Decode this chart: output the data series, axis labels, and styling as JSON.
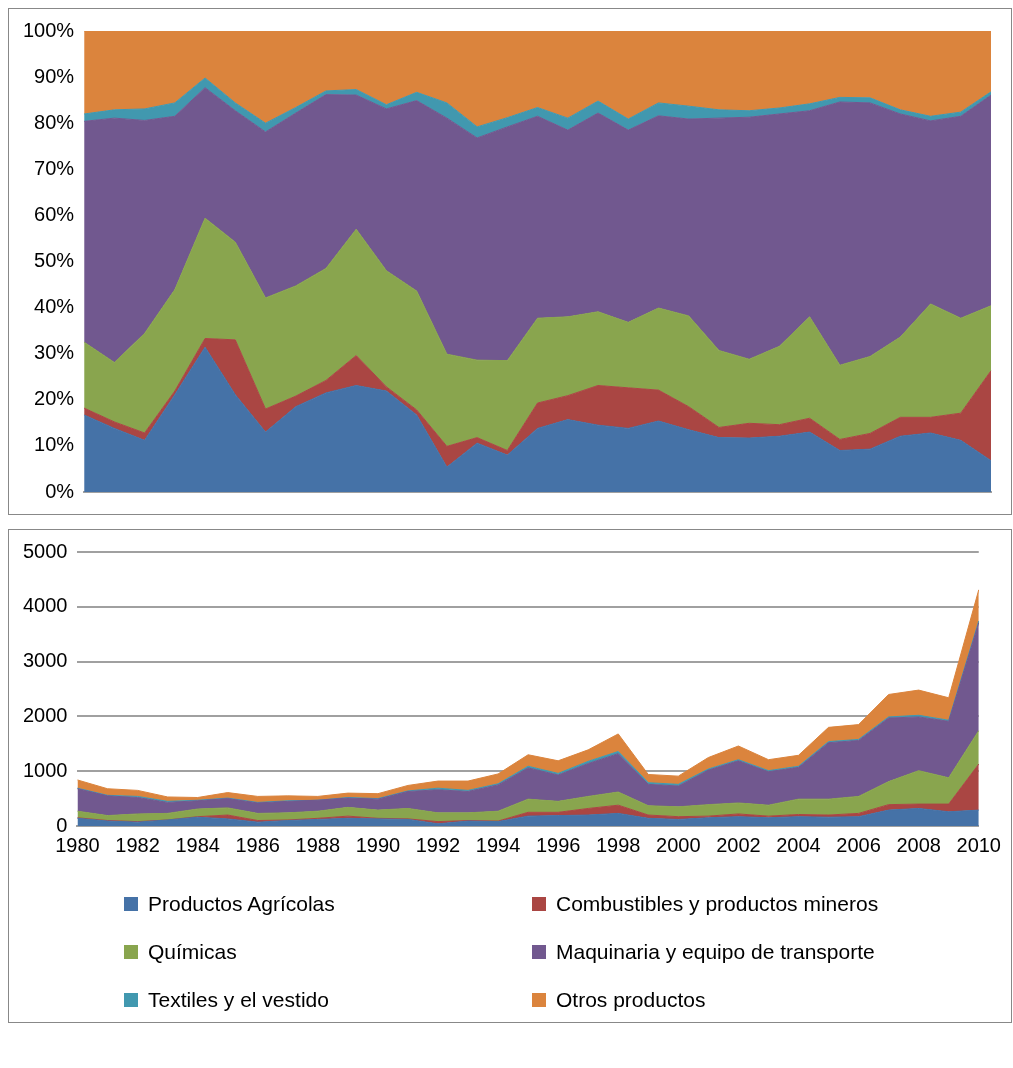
{
  "chart_data": [
    {
      "type": "area",
      "stacked": true,
      "categories": [
        null,
        null,
        null,
        null,
        null,
        null,
        null,
        null,
        null,
        null,
        null,
        null,
        null,
        null,
        null,
        null,
        null,
        null,
        null,
        null,
        null,
        null,
        null,
        null,
        null,
        null,
        null,
        null,
        null,
        null,
        null
      ],
      "ylim": [
        0,
        100
      ],
      "yticks": [
        {
          "value": 0,
          "label": "0%"
        },
        {
          "value": 10,
          "label": "10%"
        },
        {
          "value": 20,
          "label": "20%"
        },
        {
          "value": 30,
          "label": "30%"
        },
        {
          "value": 40,
          "label": "40%"
        },
        {
          "value": 50,
          "label": "50%"
        },
        {
          "value": 60,
          "label": "60%"
        },
        {
          "value": 70,
          "label": "70%"
        },
        {
          "value": 80,
          "label": "80%"
        },
        {
          "value": 90,
          "label": "90%"
        },
        {
          "value": 100,
          "label": "100%"
        }
      ],
      "tick_labels": "y",
      "marker": "none",
      "series": [
        {
          "color": "#4572a7",
          "values": [
            16.7,
            13.8,
            11.2,
            21.1,
            31.4,
            21.1,
            13.0,
            18.5,
            21.5,
            23.1,
            21.9,
            16.7,
            5.4,
            10.6,
            8.0,
            13.8,
            15.7,
            14.5,
            13.8,
            15.4,
            13.5,
            11.8,
            11.7,
            12.1,
            13.0,
            9.0,
            9.3,
            12.1,
            12.8,
            11.2,
            6.8
          ]
        },
        {
          "color": "#aa4643",
          "values": [
            1.5,
            1.4,
            1.6,
            0.8,
            1.9,
            11.9,
            5.0,
            2.3,
            2.7,
            6.5,
            0.9,
            1.1,
            4.5,
            1.2,
            1.0,
            5.5,
            5.2,
            8.6,
            8.8,
            6.7,
            5.0,
            2.2,
            3.2,
            2.5,
            3.0,
            2.4,
            3.4,
            4.1,
            3.4,
            5.9,
            19.5
          ]
        },
        {
          "color": "#89a54e",
          "values": [
            14.3,
            12.9,
            21.6,
            22.0,
            26.1,
            21.2,
            24.1,
            23.9,
            24.3,
            27.4,
            25.2,
            25.8,
            20.0,
            16.8,
            19.5,
            18.4,
            17.1,
            16.0,
            14.2,
            17.8,
            19.7,
            16.7,
            13.9,
            17.0,
            22.0,
            16.1,
            16.7,
            17.4,
            24.6,
            20.6,
            14.1
          ]
        },
        {
          "color": "#71588f",
          "values": [
            47.9,
            53.0,
            46.2,
            37.6,
            28.3,
            28.5,
            36.0,
            37.5,
            37.7,
            29.1,
            35.1,
            41.3,
            51.2,
            48.2,
            50.7,
            43.8,
            40.5,
            43.1,
            41.7,
            41.7,
            42.7,
            50.4,
            52.5,
            50.4,
            44.7,
            57.1,
            55.0,
            48.4,
            39.7,
            43.8,
            45.7
          ]
        },
        {
          "color": "#4198af",
          "values": [
            1.6,
            1.8,
            2.5,
            2.9,
            2.1,
            1.7,
            1.9,
            1.2,
            0.8,
            1.2,
            0.9,
            1.8,
            3.3,
            2.4,
            2.0,
            1.9,
            2.6,
            2.6,
            2.4,
            2.8,
            2.8,
            1.8,
            1.4,
            1.3,
            1.5,
            1.0,
            1.1,
            0.9,
            1.0,
            0.9,
            0.7
          ]
        },
        {
          "color": "#db843d",
          "values": [
            18.0,
            17.1,
            16.9,
            15.6,
            10.2,
            15.6,
            20.0,
            16.6,
            13.0,
            12.7,
            16.0,
            13.3,
            15.6,
            20.8,
            18.8,
            16.6,
            18.9,
            15.2,
            19.1,
            15.6,
            16.3,
            17.1,
            17.3,
            16.7,
            15.8,
            14.4,
            14.5,
            17.1,
            18.5,
            17.6,
            13.2
          ]
        }
      ]
    },
    {
      "type": "area",
      "stacked": true,
      "categories": [
        "1980",
        null,
        "1982",
        null,
        "1984",
        null,
        "1986",
        null,
        "1988",
        null,
        "1990",
        null,
        "1992",
        null,
        "1994",
        null,
        "1996",
        null,
        "1998",
        null,
        "2000",
        null,
        "2002",
        null,
        "2004",
        null,
        "2006",
        null,
        "2008",
        null,
        "2010"
      ],
      "ylim": [
        0,
        5000
      ],
      "yticks": [
        0,
        1000,
        2000,
        3000,
        4000,
        5000
      ],
      "grid": "y",
      "legend": "bottom",
      "marker": "none",
      "series": [
        {
          "name": "Productos Agrícolas",
          "color": "#4572a7",
          "values": [
            140,
            90,
            70,
            110,
            160,
            130,
            70,
            100,
            120,
            140,
            130,
            120,
            40,
            90,
            80,
            180,
            190,
            200,
            230,
            140,
            120,
            150,
            170,
            150,
            170,
            160,
            170,
            290,
            320,
            260,
            290
          ]
        },
        {
          "name": "Combustibles y productos mineros",
          "color": "#aa4643",
          "values": [
            10,
            10,
            10,
            0,
            10,
            70,
            30,
            10,
            20,
            40,
            10,
            10,
            40,
            10,
            10,
            70,
            60,
            120,
            150,
            60,
            50,
            30,
            50,
            30,
            40,
            40,
            60,
            100,
            80,
            140,
            840
          ]
        },
        {
          "name": "Químicas",
          "color": "#89a54e",
          "values": [
            120,
            90,
            140,
            120,
            140,
            130,
            130,
            130,
            130,
            160,
            150,
            190,
            160,
            140,
            180,
            240,
            200,
            220,
            240,
            170,
            180,
            210,
            200,
            200,
            280,
            290,
            310,
            420,
            610,
            480,
            610
          ]
        },
        {
          "name": "Maquinaria y equipo de transporte",
          "color": "#71588f",
          "values": [
            410,
            360,
            300,
            200,
            150,
            170,
            190,
            210,
            200,
            170,
            200,
            310,
            420,
            390,
            480,
            570,
            480,
            600,
            700,
            390,
            380,
            630,
            770,
            610,
            580,
            1030,
            1020,
            1160,
            980,
            1030,
            1970
          ]
        },
        {
          "name": "Textiles y el vestido",
          "color": "#4198af",
          "values": [
            10,
            10,
            20,
            20,
            10,
            10,
            10,
            10,
            0,
            10,
            10,
            10,
            30,
            20,
            20,
            30,
            30,
            40,
            40,
            30,
            30,
            20,
            20,
            20,
            20,
            20,
            20,
            20,
            30,
            20,
            30
          ]
        },
        {
          "name": "Otros productos",
          "color": "#db843d",
          "values": [
            150,
            120,
            110,
            80,
            50,
            100,
            110,
            90,
            70,
            80,
            90,
            100,
            130,
            170,
            180,
            210,
            230,
            210,
            320,
            150,
            150,
            210,
            250,
            200,
            200,
            260,
            270,
            410,
            460,
            410,
            570
          ]
        }
      ]
    }
  ]
}
